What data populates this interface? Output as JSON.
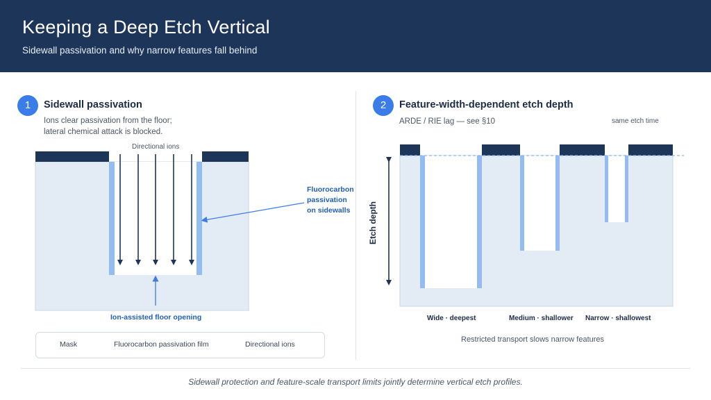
{
  "header": {
    "title": "Keeping a Deep Etch Vertical",
    "subtitle": "Sidewall passivation and why narrow features fall behind"
  },
  "panel1": {
    "badge": "1",
    "title": "Sidewall passivation",
    "description": "Ions clear passivation from the floor;\nlateral chemical attack is blocked.",
    "ions_label": "Directional ions",
    "passivation_label": "Fluorocarbon\npassivation\non sidewalls",
    "floor_label": "Ion-assisted floor opening"
  },
  "legend": {
    "mask": "Mask",
    "film": "Fluorocarbon passivation film",
    "ions": "Directional ions"
  },
  "panel2": {
    "badge": "2",
    "title": "Feature-width-dependent etch depth",
    "subtitle": "ARDE / RIE lag — see §10",
    "etch_time_label": "same etch time",
    "axis_label": "Etch depth",
    "features": [
      {
        "label": "Wide · deepest"
      },
      {
        "label": "Medium · shallower"
      },
      {
        "label": "Narrow · shallowest"
      }
    ],
    "caption": "Restricted transport slows narrow features"
  },
  "footer": {
    "caption": "Sidewall protection and feature-scale transport limits jointly determine vertical etch profiles."
  },
  "colors": {
    "header_bg": "#1d3558",
    "mask": "#1d3558",
    "passivation": "#93bcf3",
    "substrate": "#e3ebf5",
    "accent": "#3b7de8"
  }
}
